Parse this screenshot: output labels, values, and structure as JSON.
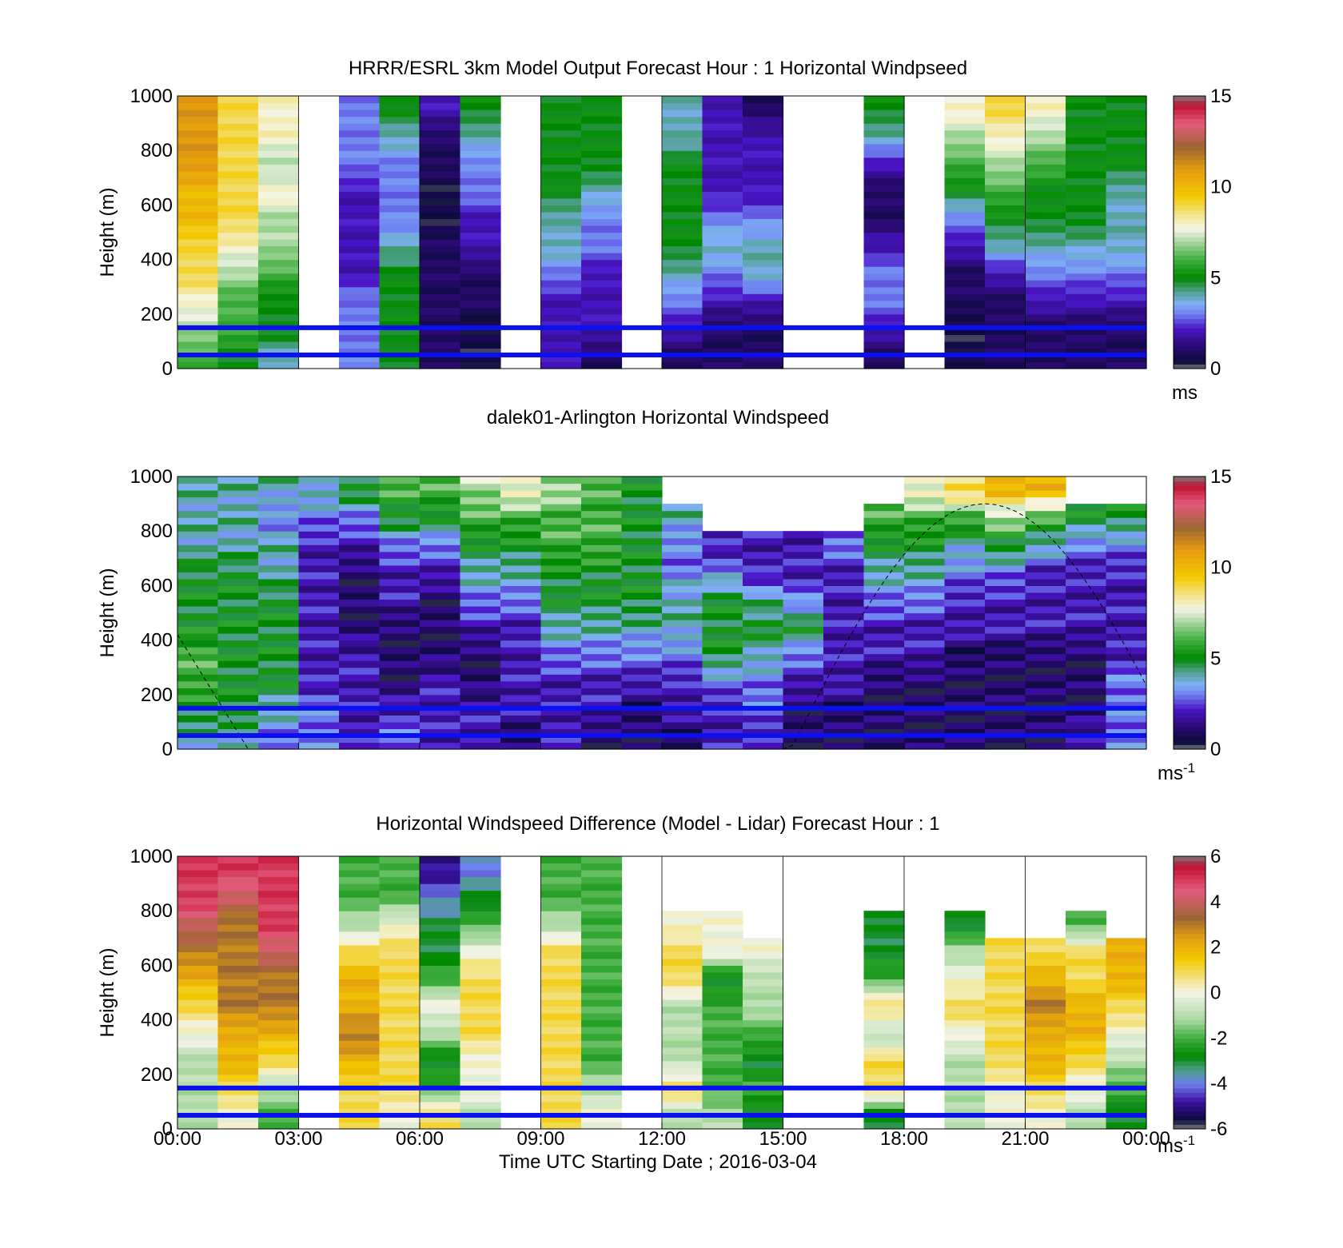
{
  "figure": {
    "xlabel": "Time UTC  Starting Date ; 2016-03-04",
    "x_ticks": [
      "00:00",
      "03:00",
      "06:00",
      "09:00",
      "12:00",
      "15:00",
      "18:00",
      "21:00",
      "00:00"
    ]
  },
  "chart_data": [
    {
      "type": "heatmap",
      "title": "HRRR/ESRL 3km Model Output   Forecast Hour : 1 Horizontal Windpseed",
      "ylabel": "Height (m)",
      "y_ticks": [
        "1000",
        "800",
        "600",
        "400",
        "200",
        "0"
      ],
      "ylim": [
        0,
        1000
      ],
      "xlim_hours": [
        0,
        24
      ],
      "colorbar": {
        "ticks": [
          "15",
          "10",
          "5",
          "0"
        ],
        "range": [
          0,
          15
        ],
        "unit": "ms",
        "unit_sup": ""
      },
      "reference_lines_m": [
        150,
        50
      ],
      "grid": "vertical lines at 3-hour ticks",
      "columns": [
        {
          "t": 0,
          "v": [
            6,
            7,
            8,
            9,
            9,
            10,
            10,
            11,
            11,
            11
          ]
        },
        {
          "t": 1,
          "v": [
            5,
            6,
            6,
            7,
            8,
            9,
            9,
            9,
            9,
            9
          ]
        },
        {
          "t": 2,
          "v": [
            4,
            5,
            5,
            6,
            7,
            7,
            8,
            7,
            8,
            8
          ]
        },
        {
          "t": 4,
          "v": [
            3,
            3,
            3,
            2,
            2,
            2,
            2,
            3,
            3,
            3
          ]
        },
        {
          "t": 5,
          "v": [
            5,
            5,
            5,
            5,
            4,
            3,
            3,
            3,
            4,
            5
          ]
        },
        {
          "t": 6,
          "v": [
            1,
            1,
            1,
            1,
            1,
            0.5,
            0.5,
            1,
            1,
            2
          ]
        },
        {
          "t": 7,
          "v": [
            0.5,
            0.5,
            1,
            1,
            2,
            2,
            3,
            3,
            4,
            5
          ]
        },
        {
          "t": 9,
          "v": [
            2,
            2,
            2,
            3,
            4,
            4,
            5,
            5,
            5,
            5
          ]
        },
        {
          "t": 10,
          "v": [
            1,
            2,
            2,
            2,
            3,
            3,
            4,
            5,
            5,
            5
          ]
        },
        {
          "t": 12,
          "v": [
            1,
            2,
            3,
            4,
            5,
            5,
            5,
            5,
            4,
            4
          ]
        },
        {
          "t": 13,
          "v": [
            1,
            1,
            2,
            3,
            4,
            3,
            2,
            2,
            2,
            2
          ]
        },
        {
          "t": 14,
          "v": [
            1,
            1,
            2,
            4,
            4,
            3,
            2,
            2,
            2,
            1
          ]
        },
        {
          "t": 17,
          "v": [
            1,
            2,
            3,
            3,
            2,
            1,
            1,
            2,
            4,
            5
          ]
        },
        {
          "t": 19,
          "v": [
            0.5,
            0.5,
            1,
            1,
            2,
            3,
            5,
            6,
            7,
            8
          ]
        },
        {
          "t": 20,
          "v": [
            1,
            1,
            1,
            2,
            4,
            5,
            6,
            7,
            8,
            9
          ]
        },
        {
          "t": 21,
          "v": [
            1,
            1,
            2,
            3,
            4,
            5,
            5,
            6,
            7,
            8
          ]
        },
        {
          "t": 22,
          "v": [
            1,
            1,
            2,
            3,
            4,
            5,
            5,
            5,
            5,
            5
          ]
        },
        {
          "t": 23,
          "v": [
            1,
            1,
            2,
            3,
            4,
            4,
            4,
            5,
            5,
            5
          ]
        }
      ]
    },
    {
      "type": "heatmap",
      "title": "dalek01-Arlington  Horizontal Windspeed",
      "ylabel": "Height (m)",
      "y_ticks": [
        "1000",
        "800",
        "600",
        "400",
        "200",
        "0"
      ],
      "ylim": [
        0,
        1000
      ],
      "xlim_hours": [
        0,
        24
      ],
      "colorbar": {
        "ticks": [
          "15",
          "10",
          "5",
          "0"
        ],
        "range": [
          0,
          15
        ],
        "unit": "ms",
        "unit_sup": "-1"
      },
      "reference_lines_m": [
        150,
        50
      ],
      "grid": "off",
      "columns": [
        {
          "t": 0,
          "v": [
            4,
            5,
            6,
            6,
            5,
            5,
            5,
            4,
            4,
            4
          ]
        },
        {
          "t": 1,
          "v": [
            4,
            5,
            5,
            5,
            5,
            5,
            5,
            4,
            4,
            4
          ]
        },
        {
          "t": 2,
          "v": [
            3,
            4,
            5,
            5,
            5,
            5,
            4,
            4,
            3,
            4
          ]
        },
        {
          "t": 3,
          "v": [
            3,
            3,
            2,
            2,
            2,
            2,
            2,
            2,
            3,
            4
          ]
        },
        {
          "t": 4,
          "v": [
            2,
            2,
            2,
            2,
            1,
            1,
            1,
            2,
            3,
            5
          ]
        },
        {
          "t": 5,
          "v": [
            3,
            2,
            1,
            1,
            1,
            2,
            2,
            3,
            5,
            6
          ]
        },
        {
          "t": 6,
          "v": [
            2,
            2,
            2,
            1,
            1,
            1,
            2,
            3,
            5,
            6
          ]
        },
        {
          "t": 7,
          "v": [
            2,
            2,
            1,
            1,
            2,
            3,
            4,
            5,
            6,
            7
          ]
        },
        {
          "t": 8,
          "v": [
            1,
            2,
            2,
            2,
            2,
            3,
            4,
            5,
            6,
            8
          ]
        },
        {
          "t": 9,
          "v": [
            2,
            2,
            2,
            3,
            4,
            5,
            5,
            6,
            6,
            7
          ]
        },
        {
          "t": 10,
          "v": [
            1,
            2,
            2,
            3,
            4,
            5,
            5,
            6,
            6,
            6
          ]
        },
        {
          "t": 11,
          "v": [
            1,
            1,
            2,
            3,
            4,
            5,
            5,
            5,
            5,
            5
          ]
        },
        {
          "t": 12,
          "v": [
            1,
            2,
            2,
            3,
            4,
            4,
            3,
            3,
            4,
            null
          ]
        },
        {
          "t": 13,
          "v": [
            2,
            2,
            3,
            5,
            5,
            5,
            3,
            2,
            null,
            null
          ]
        },
        {
          "t": 14,
          "v": [
            2,
            3,
            3,
            4,
            5,
            4,
            2,
            2,
            null,
            null
          ]
        },
        {
          "t": 15,
          "v": [
            1,
            1,
            2,
            3,
            5,
            3,
            2,
            2,
            null,
            null
          ]
        },
        {
          "t": 16,
          "v": [
            1,
            1,
            2,
            2,
            2,
            2,
            2,
            3,
            null,
            null
          ]
        },
        {
          "t": 17,
          "v": [
            1,
            1,
            1,
            2,
            2,
            3,
            4,
            5,
            6,
            null
          ]
        },
        {
          "t": 18,
          "v": [
            1,
            1,
            1,
            2,
            2,
            3,
            4,
            5,
            6,
            8
          ]
        },
        {
          "t": 19,
          "v": [
            1,
            1,
            1,
            1,
            2,
            2,
            3,
            4,
            6,
            9
          ]
        },
        {
          "t": 20,
          "v": [
            1,
            1,
            1,
            1,
            2,
            2,
            3,
            5,
            7,
            10
          ]
        },
        {
          "t": 21,
          "v": [
            1,
            1,
            1,
            1,
            2,
            2,
            2,
            4,
            6,
            10
          ]
        },
        {
          "t": 22,
          "v": [
            2,
            1,
            1,
            1,
            2,
            2,
            2,
            3,
            5,
            null
          ]
        },
        {
          "t": 23,
          "v": [
            3,
            3,
            3,
            2,
            2,
            2,
            2,
            3,
            5,
            null
          ]
        }
      ]
    },
    {
      "type": "heatmap",
      "title": "Horizontal Windspeed Difference (Model - Lidar) Forecast Hour : 1",
      "ylabel": "Height (m)",
      "y_ticks": [
        "1000",
        "800",
        "600",
        "400",
        "200",
        "0"
      ],
      "ylim": [
        0,
        1000
      ],
      "xlim_hours": [
        0,
        24
      ],
      "colorbar": {
        "ticks": [
          "6",
          "4",
          "2",
          "0",
          "-2",
          "-4",
          "-6"
        ],
        "range": [
          -6,
          6
        ],
        "unit": "ms",
        "unit_sup": "-1"
      },
      "reference_lines_m": [
        150,
        50
      ],
      "grid": "vertical lines at 3-hour ticks",
      "columns": [
        {
          "t": 0,
          "v": [
            -1,
            -1,
            -1,
            0,
            1,
            2,
            3,
            4,
            5,
            5
          ]
        },
        {
          "t": 1,
          "v": [
            0,
            1,
            2,
            2,
            3,
            3,
            3,
            3,
            4,
            5
          ]
        },
        {
          "t": 2,
          "v": [
            -2,
            -1,
            1,
            2,
            3,
            3,
            4,
            5,
            5,
            5
          ]
        },
        {
          "t": 4,
          "v": [
            1,
            1,
            2,
            3,
            2,
            2,
            1,
            -1,
            -2,
            -2
          ]
        },
        {
          "t": 5,
          "v": [
            0,
            1,
            1,
            1,
            1,
            1,
            1,
            0,
            -2,
            -2
          ]
        },
        {
          "t": 6,
          "v": [
            1,
            -2,
            -3,
            -1,
            0,
            -2,
            -3,
            -3,
            -4,
            -5
          ]
        },
        {
          "t": 7,
          "v": [
            -1,
            0,
            0,
            1,
            1,
            1,
            0,
            -2,
            -3,
            -4
          ]
        },
        {
          "t": 9,
          "v": [
            1,
            1,
            1,
            1,
            1,
            1,
            1,
            -1,
            -2,
            -2
          ]
        },
        {
          "t": 10,
          "v": [
            0,
            -1,
            -2,
            -2,
            -2,
            -2,
            -2,
            -2,
            -2,
            -2
          ]
        },
        {
          "t": 12,
          "v": [
            -1,
            1,
            -1,
            -1,
            -1,
            1,
            1,
            0,
            null,
            null
          ]
        },
        {
          "t": 13,
          "v": [
            -1,
            -2,
            -2,
            -2,
            -2,
            -3,
            0,
            0,
            null,
            null
          ]
        },
        {
          "t": 14,
          "v": [
            -3,
            -2,
            -3,
            -2,
            -1,
            -1,
            0,
            null,
            null,
            null
          ]
        },
        {
          "t": 17,
          "v": [
            -3,
            1,
            1,
            -1,
            1,
            -2,
            -3,
            -3,
            null,
            null
          ]
        },
        {
          "t": 19,
          "v": [
            -1,
            -1,
            -1,
            0,
            1,
            0,
            -1,
            -3,
            null,
            null
          ]
        },
        {
          "t": 20,
          "v": [
            0,
            0,
            1,
            1,
            1,
            1,
            1,
            null,
            null,
            null
          ]
        },
        {
          "t": 21,
          "v": [
            0,
            1,
            2,
            2,
            3,
            2,
            1,
            null,
            null,
            null
          ]
        },
        {
          "t": 22,
          "v": [
            -1,
            0,
            1,
            2,
            2,
            1,
            1,
            -2,
            null,
            null
          ]
        },
        {
          "t": 23,
          "v": [
            -3,
            -2,
            -1,
            0,
            1,
            2,
            2,
            null,
            null,
            null
          ]
        }
      ]
    }
  ]
}
